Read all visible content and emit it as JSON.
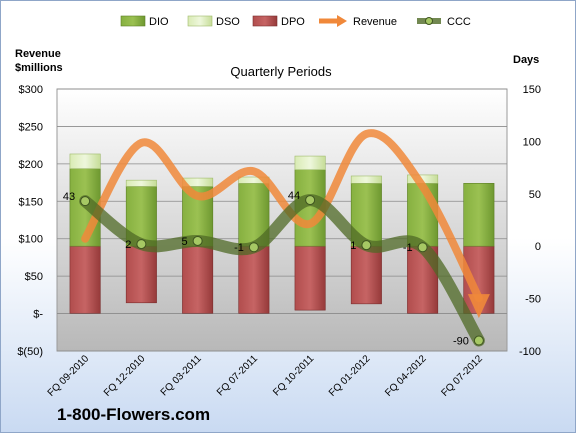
{
  "chart_data": {
    "type": "bar",
    "title": "Quarterly Periods",
    "y_left_label": "Revenue\n$millions",
    "y_right_label": "Days",
    "y_left_ticks": [
      "$300",
      "$250",
      "$200",
      "$150",
      "$100",
      "$50",
      "$-",
      "$(50)"
    ],
    "y_left_range": [
      -50,
      300
    ],
    "y_right_ticks": [
      "150",
      "100",
      "50",
      "0",
      "-50",
      "-100"
    ],
    "y_right_range": [
      -100,
      150
    ],
    "categories": [
      "FQ 09-2010",
      "FQ 12-2010",
      "FQ 03-2011",
      "FQ 07-2011",
      "FQ 10-2011",
      "FQ 01-2012",
      "FQ 04-2012",
      "FQ 07-2012"
    ],
    "legend": [
      "DIO",
      "DSO",
      "DPO",
      "Revenue",
      "CCC"
    ],
    "legend_position": "top",
    "grid": true,
    "series": [
      {
        "name": "DIO",
        "kind": "bar-positive",
        "axis": "right",
        "color": "#7aa33a",
        "values": [
          74,
          57,
          57,
          60,
          73,
          60,
          60,
          60
        ]
      },
      {
        "name": "DSO",
        "kind": "bar-positive-stacked",
        "axis": "right",
        "color": "#d6e8b0",
        "values": [
          14,
          6,
          8,
          6,
          13,
          7,
          8,
          0
        ]
      },
      {
        "name": "DPO",
        "kind": "bar-negative",
        "axis": "right",
        "color": "#a84343",
        "values": [
          -64,
          -54,
          -64,
          -64,
          -61,
          -55,
          -64,
          -64
        ]
      },
      {
        "name": "Revenue",
        "kind": "line",
        "axis": "left",
        "color": "#f0883a",
        "values": [
          100,
          228,
          157,
          190,
          120,
          240,
          170,
          2
        ]
      },
      {
        "name": "CCC",
        "kind": "line",
        "axis": "right",
        "color": "#5e7d2e",
        "values": [
          43,
          2,
          5,
          -1,
          44,
          1,
          -1,
          -90
        ]
      }
    ],
    "ccc_labels": [
      "43",
      "2",
      "5",
      "-1",
      "44",
      "1",
      "-1",
      "-90"
    ]
  },
  "footer": {
    "brand": "1-800-Flowers.com"
  }
}
